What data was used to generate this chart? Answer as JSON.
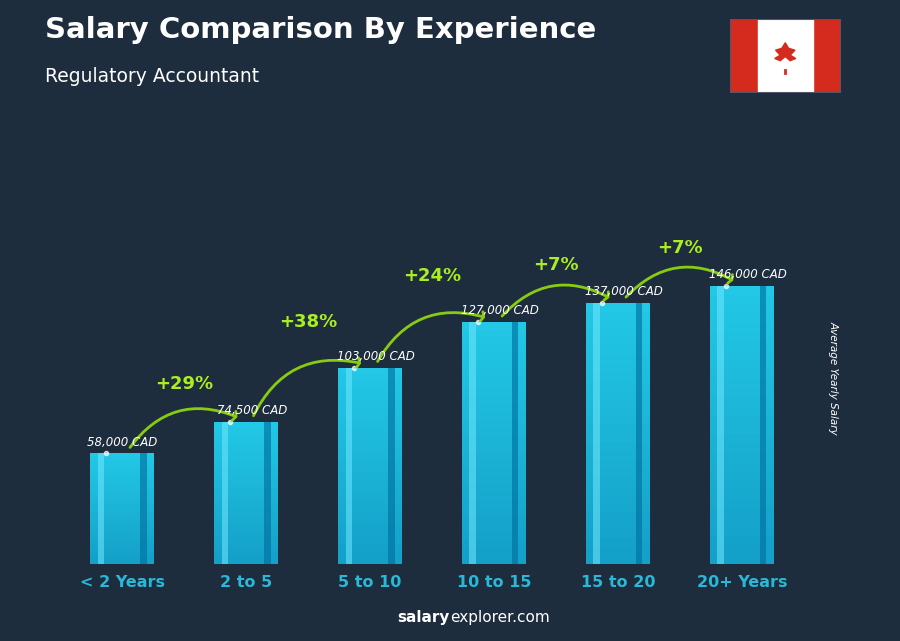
{
  "title": "Salary Comparison By Experience",
  "subtitle": "Regulatory Accountant",
  "categories": [
    "< 2 Years",
    "2 to 5",
    "5 to 10",
    "10 to 15",
    "15 to 20",
    "20+ Years"
  ],
  "values": [
    58000,
    74500,
    103000,
    127000,
    137000,
    146000
  ],
  "value_labels": [
    "58,000 CAD",
    "74,500 CAD",
    "103,000 CAD",
    "127,000 CAD",
    "137,000 CAD",
    "146,000 CAD"
  ],
  "pct_labels": [
    "+29%",
    "+38%",
    "+24%",
    "+7%",
    "+7%"
  ],
  "bar_color": "#29b8d8",
  "bar_color_light": "#50d8f0",
  "bar_color_dark": "#1090b0",
  "bg_color": "#1e2d3d",
  "title_color": "#ffffff",
  "subtitle_color": "#ffffff",
  "value_label_color": "#ffffff",
  "pct_color": "#aaee22",
  "arrow_color": "#88cc11",
  "xtick_color": "#29b8d8",
  "ylabel_text": "Average Yearly Salary",
  "footer_bold": "salary",
  "footer_normal": "explorer.com",
  "ylim": [
    0,
    195000
  ],
  "flag_red": "#d52b1e",
  "flag_white": "#ffffff"
}
